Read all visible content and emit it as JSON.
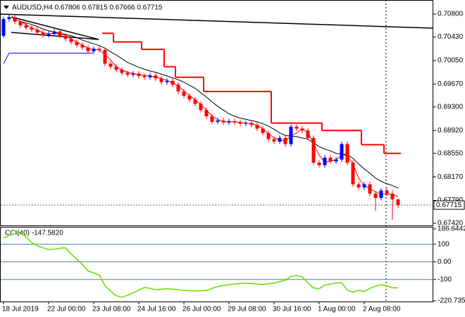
{
  "chart_data": [
    {
      "type": "candlestick",
      "title": "AUDUSD,H4 0.67806 0.67815 0.67666 0.67715",
      "categories": [
        "18 Jul 2019",
        null,
        null,
        null,
        null,
        null,
        null,
        null,
        "22 Jul 00:00",
        null,
        null,
        null,
        null,
        null,
        null,
        null,
        "23 Jul 08:00",
        null,
        null,
        null,
        null,
        null,
        null,
        null,
        "24 Jul 16:00",
        null,
        null,
        null,
        null,
        null,
        null,
        null,
        "26 Jul 00:00",
        null,
        null,
        null,
        null,
        null,
        null,
        null,
        "29 Jul 08:00",
        null,
        null,
        null,
        null,
        null,
        null,
        null,
        "30 Jul 16:00",
        null,
        null,
        null,
        null,
        null,
        null,
        null,
        "1 Aug 00:00",
        null,
        null,
        null,
        null,
        null,
        null,
        null,
        "2 Aug 08:00",
        null,
        null,
        null,
        null,
        null,
        null
      ],
      "open": [
        0.7045,
        0.7072,
        0.7075,
        0.7068,
        0.7062,
        0.7058,
        0.7055,
        0.705,
        0.7046,
        0.7048,
        0.7052,
        0.7045,
        0.704,
        0.7035,
        0.703,
        0.7026,
        0.702,
        0.7024,
        0.7022,
        0.7,
        0.6995,
        0.699,
        0.6985,
        0.6982,
        0.6984,
        0.698,
        0.6978,
        0.6981,
        0.6976,
        0.697,
        0.6972,
        0.6966,
        0.6955,
        0.6948,
        0.6942,
        0.6935,
        0.6925,
        0.6915,
        0.6906,
        0.6908,
        0.6905,
        0.6907,
        0.6905,
        0.6903,
        0.6904,
        0.6901,
        0.6895,
        0.6888,
        0.6878,
        0.6874,
        0.688,
        0.687,
        0.6898,
        0.6895,
        0.6892,
        0.688,
        0.684,
        0.6836,
        0.6848,
        0.6842,
        0.6845,
        0.687,
        0.684,
        0.6805,
        0.68,
        0.6805,
        0.679,
        0.6783,
        0.6795,
        0.679,
        0.67806
      ],
      "high": [
        0.7076,
        0.7079,
        0.7079,
        0.7072,
        0.7066,
        0.7062,
        0.7059,
        0.7054,
        0.7052,
        0.7056,
        0.7056,
        0.7049,
        0.7044,
        0.7039,
        0.7034,
        0.703,
        0.7028,
        0.7028,
        0.7026,
        0.7004,
        0.6999,
        0.6994,
        0.6989,
        0.6988,
        0.6988,
        0.6984,
        0.6985,
        0.6985,
        0.698,
        0.6976,
        0.6976,
        0.697,
        0.6959,
        0.6952,
        0.6946,
        0.6939,
        0.6929,
        0.6919,
        0.6912,
        0.6912,
        0.6911,
        0.6911,
        0.6909,
        0.6908,
        0.6908,
        0.6905,
        0.6899,
        0.6892,
        0.6882,
        0.6884,
        0.6884,
        0.6902,
        0.6902,
        0.6899,
        0.6896,
        0.6884,
        0.6844,
        0.6852,
        0.6852,
        0.6849,
        0.6874,
        0.6874,
        0.6844,
        0.6809,
        0.6809,
        0.6809,
        0.6794,
        0.6799,
        0.6799,
        0.6795,
        0.67815
      ],
      "low": [
        0.7041,
        0.7068,
        0.7064,
        0.7058,
        0.7054,
        0.7051,
        0.7046,
        0.7042,
        0.7042,
        0.7044,
        0.7041,
        0.7036,
        0.7031,
        0.7026,
        0.7022,
        0.7016,
        0.7016,
        0.7018,
        0.6996,
        0.6991,
        0.6986,
        0.6981,
        0.6978,
        0.6978,
        0.6976,
        0.6974,
        0.6974,
        0.6972,
        0.6966,
        0.6966,
        0.6962,
        0.6951,
        0.6944,
        0.6938,
        0.6931,
        0.6921,
        0.6911,
        0.6902,
        0.6902,
        0.6901,
        0.6901,
        0.6901,
        0.6899,
        0.6899,
        0.6897,
        0.6891,
        0.6884,
        0.6874,
        0.687,
        0.687,
        0.6866,
        0.6866,
        0.6891,
        0.6888,
        0.6876,
        0.6836,
        0.6832,
        0.6832,
        0.6838,
        0.6838,
        0.6841,
        0.6836,
        0.6801,
        0.6796,
        0.6796,
        0.6786,
        0.6762,
        0.6779,
        0.6786,
        0.6748,
        0.67666
      ],
      "close": [
        0.7072,
        0.7075,
        0.7068,
        0.7062,
        0.7058,
        0.7055,
        0.705,
        0.7046,
        0.7048,
        0.7052,
        0.7045,
        0.704,
        0.7035,
        0.703,
        0.7026,
        0.702,
        0.7024,
        0.7022,
        0.7,
        0.6995,
        0.699,
        0.6985,
        0.6982,
        0.6984,
        0.698,
        0.6978,
        0.6981,
        0.6976,
        0.697,
        0.6972,
        0.6966,
        0.6955,
        0.6948,
        0.6942,
        0.6935,
        0.6925,
        0.6915,
        0.6906,
        0.6908,
        0.6905,
        0.6907,
        0.6905,
        0.6903,
        0.6904,
        0.6901,
        0.6895,
        0.6888,
        0.6878,
        0.6874,
        0.688,
        0.687,
        0.6898,
        0.6895,
        0.6892,
        0.688,
        0.684,
        0.6836,
        0.6848,
        0.6842,
        0.6845,
        0.687,
        0.684,
        0.6805,
        0.68,
        0.6805,
        0.679,
        0.6783,
        0.6795,
        0.679,
        0.67806,
        0.67715
      ],
      "up_color": "#0000ff",
      "down_color": "#ff0000",
      "overlays": [
        {
          "color": "#000000",
          "style": "line",
          "values": [
            null,
            null,
            null,
            0.7068,
            0.7066,
            0.7063,
            0.706,
            0.7056,
            0.7053,
            0.7051,
            0.7049,
            0.7047,
            0.7045,
            0.7042,
            0.7038,
            0.7035,
            0.7032,
            0.7029,
            0.7025,
            0.7019,
            0.7014,
            0.7008,
            0.7002,
            0.6998,
            0.6994,
            0.6991,
            0.6988,
            0.6986,
            0.6983,
            0.698,
            0.6977,
            0.6974,
            0.697,
            0.6965,
            0.696,
            0.6953,
            0.6946,
            0.6938,
            0.6931,
            0.6925,
            0.6919,
            0.6915,
            0.6912,
            0.691,
            0.6908,
            0.6906,
            0.6903,
            0.6899,
            0.6894,
            0.6888,
            0.6884,
            0.6883,
            0.6882,
            0.688,
            0.6878,
            0.6872,
            0.6866,
            0.6862,
            0.6859,
            0.6855,
            0.6854,
            0.6853,
            0.6847,
            0.6838,
            0.683,
            0.6823,
            0.6815,
            0.681,
            0.6806,
            0.6803,
            0.6799
          ]
        },
        {
          "color": "#ff0000",
          "style": "line",
          "values": [
            null,
            null,
            0.7072,
            0.7068,
            0.7063,
            0.7058,
            0.7054,
            0.705,
            0.7048,
            0.7049,
            0.7048,
            0.7046,
            0.704,
            0.7035,
            0.703,
            0.7025,
            0.7023,
            0.7022,
            0.7015,
            0.7006,
            0.6995,
            0.699,
            0.6986,
            0.6984,
            0.6982,
            0.6981,
            0.698,
            0.6978,
            0.6976,
            0.6973,
            0.6969,
            0.6964,
            0.6956,
            0.6948,
            0.6942,
            0.6934,
            0.6925,
            0.6915,
            0.691,
            0.6906,
            0.6906,
            0.6906,
            0.6905,
            0.6904,
            0.6903,
            0.69,
            0.6895,
            0.6887,
            0.688,
            0.6877,
            0.6875,
            0.6883,
            0.6888,
            0.6895,
            0.6889,
            0.6871,
            0.6852,
            0.6841,
            0.6842,
            0.6845,
            0.6852,
            0.6852,
            0.6838,
            0.6815,
            0.6803,
            0.6798,
            0.6793,
            0.6789,
            0.6789,
            0.6789,
            0.6785
          ]
        },
        {
          "color": "#ff0000",
          "style": "step",
          "values": [
            null,
            null,
            null,
            null,
            null,
            null,
            null,
            null,
            null,
            null,
            null,
            null,
            null,
            null,
            null,
            null,
            null,
            null,
            0.7049,
            0.7049,
            0.7035,
            0.7035,
            0.7035,
            0.7035,
            0.7035,
            0.7023,
            0.7023,
            0.7023,
            0.7023,
            0.6995,
            0.6995,
            0.6978,
            0.6978,
            0.6978,
            0.6978,
            0.6978,
            0.6955,
            0.6955,
            0.6955,
            0.6955,
            0.6955,
            0.6955,
            0.6955,
            0.6955,
            0.6955,
            0.6955,
            0.6955,
            0.6955,
            0.6904,
            0.6904,
            0.6904,
            0.6904,
            0.6904,
            0.6904,
            0.6904,
            0.6904,
            0.6904,
            0.6892,
            0.6892,
            0.6892,
            0.6892,
            0.6892,
            0.6892,
            0.6892,
            0.6869,
            0.6869,
            0.6869,
            0.6869,
            0.6855,
            0.6855,
            0.6855
          ]
        },
        {
          "color": "#0000ff",
          "style": "line",
          "values": [
            0.7,
            0.7017,
            0.7017,
            0.7017,
            0.7017,
            0.7017,
            0.7017,
            0.7017,
            0.7017,
            0.7017,
            0.7017,
            0.7017,
            0.7017,
            0.7017,
            0.7017,
            0.7017,
            0.7017,
            null,
            null,
            null,
            null,
            null,
            null,
            null,
            null,
            null,
            null,
            null,
            null,
            null,
            null,
            null,
            null,
            null,
            null,
            null,
            null,
            null,
            null,
            null,
            null,
            null,
            null,
            null,
            null,
            null,
            null,
            null,
            null,
            null,
            null,
            null,
            null,
            null,
            null,
            null,
            null,
            null,
            null,
            null,
            null,
            null,
            null,
            null,
            null,
            null,
            null,
            null,
            null,
            null,
            null
          ]
        }
      ],
      "ylim": [
        0.67386,
        0.70971
      ],
      "yticks": [
        {
          "value": 0.708,
          "label": "0.70800"
        },
        {
          "value": 0.7043,
          "label": "0.70430"
        },
        {
          "value": 0.7005,
          "label": "0.70050"
        },
        {
          "value": 0.6967,
          "label": "0.69670"
        },
        {
          "value": 0.693,
          "label": "0.69300"
        },
        {
          "value": 0.6892,
          "label": "0.68920"
        },
        {
          "value": 0.6855,
          "label": "0.68550"
        },
        {
          "value": 0.6817,
          "label": "0.68170"
        },
        {
          "value": 0.6779,
          "label": "0.67790"
        },
        {
          "value": 0.6742,
          "label": "0.67420"
        }
      ],
      "last_price": 0.67715,
      "grid": false
    },
    {
      "type": "line",
      "title": "CCI(40) -147.5820",
      "color": "#66dd00",
      "values": [
        136,
        148,
        160,
        168,
        140,
        110,
        90,
        80,
        70,
        72,
        78,
        80,
        45,
        15,
        -15,
        -52,
        -62,
        -75,
        -135,
        -165,
        -192,
        -200,
        -190,
        -175,
        -160,
        -145,
        -150,
        -160,
        -155,
        -152,
        -155,
        -158,
        -162,
        -164,
        -165,
        -164,
        -162,
        -150,
        -140,
        -134,
        -130,
        -126,
        -122,
        -120,
        -124,
        -126,
        -128,
        -124,
        -120,
        -112,
        -104,
        -82,
        -78,
        -84,
        -120,
        -148,
        -152,
        -132,
        -126,
        -120,
        -118,
        -160,
        -172,
        -162,
        -168,
        -150,
        -138,
        -130,
        -136,
        -147,
        -147.582
      ],
      "ylim": [
        -220.735,
        186.6442
      ],
      "yticks": [
        186.6442,
        100,
        {
          "value": 0,
          "label": "0.00"
        },
        -100,
        -220.735
      ],
      "grid": true
    }
  ]
}
